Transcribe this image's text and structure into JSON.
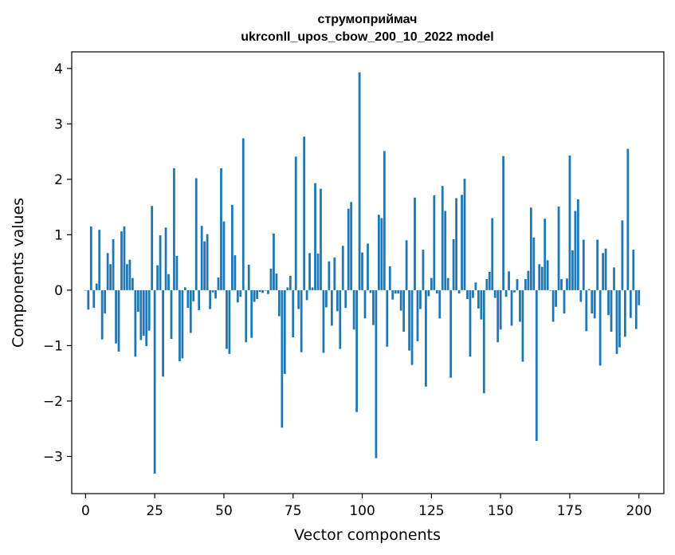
{
  "chart_data": {
    "type": "bar",
    "title_line1": "струмоприймач",
    "title_line2": "ukrconll_upos_cbow_200_10_2022 model",
    "xlabel": "Vector components",
    "ylabel": "Components values",
    "xlim": [
      -5,
      209
    ],
    "ylim": [
      -3.67,
      4.3
    ],
    "xticks": [
      0,
      25,
      50,
      75,
      100,
      125,
      150,
      175,
      200
    ],
    "yticks": [
      -3,
      -2,
      -1,
      0,
      1,
      2,
      3,
      4
    ],
    "ytick_labels": [
      "−3",
      "−2",
      "−1",
      "0",
      "1",
      "2",
      "3",
      "4"
    ],
    "values": [
      0.0,
      -0.35,
      1.15,
      -0.32,
      0.12,
      1.09,
      -0.89,
      -0.42,
      0.67,
      0.47,
      0.92,
      -0.96,
      -1.11,
      1.06,
      1.15,
      0.47,
      0.55,
      0.22,
      -1.2,
      -0.39,
      -0.9,
      -0.82,
      -1.01,
      -0.73,
      1.52,
      -3.31,
      0.45,
      0.99,
      -1.56,
      1.13,
      0.29,
      -0.88,
      2.2,
      0.62,
      -1.28,
      -1.23,
      0.05,
      -0.32,
      -0.77,
      -0.2,
      2.02,
      -0.36,
      1.16,
      0.88,
      1.01,
      -0.34,
      -0.04,
      -0.15,
      0.23,
      2.2,
      1.24,
      -1.06,
      -1.15,
      1.54,
      0.63,
      -0.22,
      -0.12,
      2.74,
      -0.94,
      0.46,
      -0.86,
      -0.21,
      -0.16,
      -0.03,
      -0.05,
      0.0,
      -0.07,
      0.39,
      1.02,
      0.3,
      -0.47,
      -2.48,
      -1.51,
      0.05,
      0.26,
      -0.85,
      2.41,
      -0.34,
      -1.12,
      2.77,
      -0.18,
      0.67,
      0.05,
      1.93,
      0.66,
      1.83,
      -1.13,
      -0.31,
      0.52,
      -0.64,
      0.59,
      -0.38,
      -1.06,
      0.8,
      -0.32,
      1.47,
      1.59,
      -0.71,
      -2.2,
      3.93,
      0.68,
      -0.51,
      0.84,
      -0.05,
      -0.63,
      -3.03,
      1.36,
      1.3,
      2.51,
      -1.02,
      0.43,
      -0.17,
      -0.06,
      -0.06,
      -0.37,
      -0.75,
      0.9,
      -1.09,
      -1.35,
      1.67,
      -0.92,
      -0.34,
      0.73,
      -1.74,
      -0.11,
      0.22,
      1.71,
      -0.06,
      -0.51,
      1.88,
      1.43,
      0.22,
      -1.58,
      0.92,
      1.66,
      -0.06,
      1.72,
      2.01,
      -0.16,
      -1.2,
      -0.14,
      0.14,
      -0.33,
      -0.53,
      -1.86,
      0.2,
      0.33,
      1.3,
      -0.14,
      -0.94,
      -0.71,
      2.42,
      -0.12,
      0.34,
      -0.64,
      -0.04,
      0.2,
      -0.57,
      -1.29,
      0.2,
      0.35,
      1.49,
      0.95,
      -2.72,
      0.47,
      0.42,
      1.29,
      0.54,
      0.0,
      -0.57,
      -0.3,
      1.51,
      0.2,
      -0.42,
      0.21,
      2.43,
      0.72,
      1.43,
      1.64,
      -0.21,
      0.91,
      -0.74,
      0.02,
      -0.42,
      -0.51,
      0.91,
      -1.36,
      0.67,
      0.75,
      -0.45,
      -0.75,
      0.41,
      -1.15,
      -1.03,
      1.26,
      -0.84,
      2.55,
      -0.5,
      0.73,
      -0.7,
      -0.27
    ]
  }
}
